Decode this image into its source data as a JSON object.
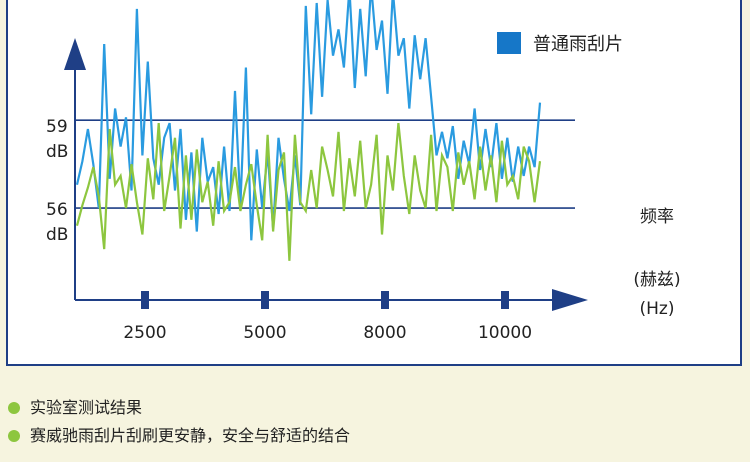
{
  "colors": {
    "axis": "#1f3f86",
    "series_blue": "#2a9be0",
    "series_green": "#8dc63f",
    "bullet": "#8dc63f",
    "background": "#f6f4df"
  },
  "chart_data": {
    "type": "line",
    "ylabel": "",
    "xlabel_lines": [
      "频率",
      "(赫兹)",
      "(Hz)"
    ],
    "x_ticks": [
      "2500",
      "5000",
      "8000",
      "10000"
    ],
    "y_ref_lines": [
      {
        "value": 59,
        "label_lines": [
          "59",
          "dB"
        ]
      },
      {
        "value": 56,
        "label_lines": [
          "56",
          "dB"
        ]
      }
    ],
    "ylim": [
      53,
      63
    ],
    "legend": {
      "label": "普通雨刮片",
      "position": "top-right"
    },
    "series": [
      {
        "name": "普通雨刮片",
        "color": "#2a9be0",
        "values": [
          56.8,
          57.6,
          58.7,
          57.5,
          56.0,
          61.6,
          57.0,
          59.4,
          58.1,
          59.1,
          56.6,
          62.8,
          57.8,
          61.0,
          57.7,
          56.8,
          58.4,
          58.9,
          56.6,
          58.7,
          55.6,
          57.9,
          55.2,
          58.4,
          56.9,
          57.4,
          55.8,
          58.1,
          55.9,
          60.0,
          56.1,
          60.8,
          54.9,
          58.0,
          56.0,
          57.9,
          55.3,
          58.4,
          57.0,
          55.9,
          57.8,
          56.1,
          62.9,
          59.2,
          63.0,
          59.8,
          63.1,
          61.2,
          62.1,
          60.8,
          63.5,
          60.1,
          62.8,
          60.5,
          63.6,
          61.4,
          62.4,
          59.9,
          63.4,
          61.2,
          61.8,
          59.4,
          61.9,
          60.4,
          61.8,
          59.8,
          57.8,
          58.6,
          57.7,
          58.8,
          57.0,
          58.3,
          57.5,
          59.4,
          57.3,
          58.7,
          57.4,
          58.9,
          57.0,
          58.4,
          56.9,
          58.1,
          57.1,
          58.1,
          57.4,
          59.6
        ],
        "x_range": [
          1500,
          11200
        ]
      },
      {
        "name": "",
        "color": "#8dc63f",
        "values": [
          55.4,
          56.1,
          56.7,
          57.4,
          56.4,
          54.6,
          58.7,
          56.8,
          57.1,
          56.0,
          57.5,
          56.2,
          55.1,
          57.7,
          56.3,
          58.9,
          55.9,
          57.1,
          58.4,
          55.3,
          57.8,
          55.6,
          58.0,
          56.2,
          56.9,
          55.4,
          57.6,
          55.9,
          56.2,
          57.4,
          55.9,
          56.8,
          57.5,
          56.1,
          54.9,
          58.5,
          55.2,
          57.3,
          57.9,
          54.2,
          58.5,
          56.2,
          55.9,
          57.3,
          56.0,
          58.1,
          57.3,
          56.4,
          58.6,
          55.9,
          57.7,
          56.4,
          58.3,
          56.0,
          56.8,
          58.5,
          55.1,
          57.8,
          56.6,
          58.9,
          57.1,
          55.8,
          57.8,
          56.6,
          56.0,
          58.5,
          55.9,
          57.8,
          57.4,
          55.9,
          57.9,
          56.8,
          57.6,
          56.3,
          58.1,
          56.6,
          57.8,
          56.2,
          58.3,
          56.8,
          57.1,
          56.3,
          58.1,
          57.6,
          56.2,
          57.6
        ],
        "x_range": [
          1500,
          11200
        ]
      }
    ]
  },
  "notes": [
    "实验室测试结果",
    "赛威驰雨刮片刮刷更安静，安全与舒适的结合"
  ]
}
